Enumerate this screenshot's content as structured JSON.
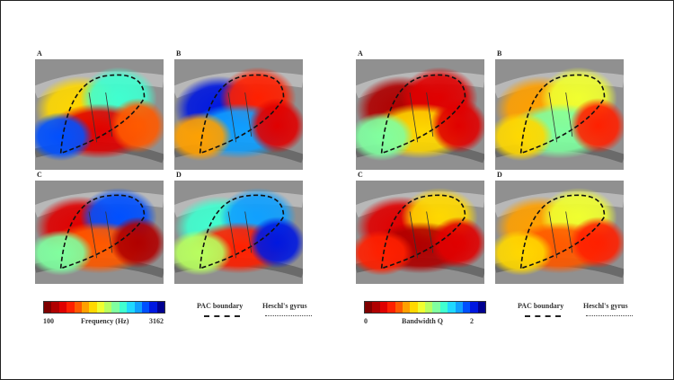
{
  "figures": [
    {
      "id": "frequency",
      "panels": [
        "A",
        "B",
        "C",
        "D"
      ],
      "colorbar": {
        "min_label": "100",
        "max_label": "3162",
        "title": "Frequency (Hz)"
      },
      "legend": {
        "pac": "PAC boundary",
        "heschl": "Heschl's gyrus"
      }
    },
    {
      "id": "bandwidth",
      "panels": [
        "A",
        "B",
        "C",
        "D"
      ],
      "colorbar": {
        "min_label": "0",
        "max_label": "2",
        "title": "Bandwidth Q"
      },
      "legend": {
        "pac": "PAC boundary",
        "heschl": "Heschl's gyrus"
      }
    }
  ],
  "colormap": [
    "#7f0000",
    "#b00000",
    "#e00000",
    "#ff2000",
    "#ff5a00",
    "#ffa000",
    "#ffd800",
    "#f0ff30",
    "#b8ff60",
    "#80ffa0",
    "#40ffd0",
    "#20d8ff",
    "#10a0ff",
    "#0050ff",
    "#0018e0",
    "#000090"
  ]
}
